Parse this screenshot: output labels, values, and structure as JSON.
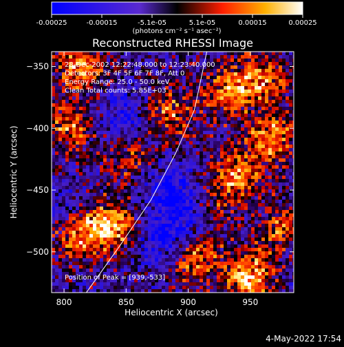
{
  "chart_data": {
    "type": "heatmap",
    "title": "Reconstructed RHESSI Image",
    "xlabel": "Heliocentric X (arcsec)",
    "ylabel": "Heliocentric Y (arcsec)",
    "xlim": [
      790,
      985
    ],
    "ylim": [
      -533,
      -338
    ],
    "xticks": [
      800,
      850,
      900,
      950
    ],
    "yticks": [
      -350,
      -400,
      -450,
      -500
    ],
    "colorbar": {
      "range": [
        -0.00025,
        0.00025
      ],
      "ticks": [
        "-0.00025",
        "-0.00015",
        "-5.1e-05",
        "5.1e-05",
        "0.00015",
        "0.00025"
      ],
      "unit_label": "(photons cm⁻² s⁻¹ asec⁻²)"
    },
    "annotations": [
      "28-Dec-2002 12:22:48.000 to 12:23:40.000",
      "Detectors: 3F 4F 5F 6F 7F 8F, Att 0",
      "Energy Range: 25.0 - 50.0 keV",
      "Clean     Total counts: 5.85E+03"
    ],
    "peak_label": "Position of Peak = [939,-533]",
    "limb_points": [
      [
        818,
        -533
      ],
      [
        845,
        -495
      ],
      [
        870,
        -458
      ],
      [
        890,
        -420
      ],
      [
        905,
        -385
      ],
      [
        915,
        -338
      ]
    ],
    "hotspots": [
      {
        "x": 812,
        "y": -350,
        "value": 0.00022
      },
      {
        "x": 805,
        "y": -398,
        "value": 0.00018
      },
      {
        "x": 838,
        "y": -478,
        "value": 0.00025
      },
      {
        "x": 812,
        "y": -487,
        "value": 0.0002
      },
      {
        "x": 852,
        "y": -425,
        "value": 0.00012
      },
      {
        "x": 885,
        "y": -388,
        "value": 0.00017
      },
      {
        "x": 930,
        "y": -372,
        "value": 0.00018
      },
      {
        "x": 958,
        "y": -360,
        "value": 0.00021
      },
      {
        "x": 968,
        "y": -408,
        "value": 0.00022
      },
      {
        "x": 940,
        "y": -438,
        "value": 0.00019
      },
      {
        "x": 905,
        "y": -505,
        "value": 0.00021
      },
      {
        "x": 948,
        "y": -520,
        "value": 0.00025
      },
      {
        "x": 975,
        "y": -480,
        "value": 0.00016
      },
      {
        "x": 920,
        "y": -462,
        "value": 0.0001
      }
    ],
    "coolspots": [
      {
        "x": 885,
        "y": -450,
        "value": -0.00015
      },
      {
        "x": 900,
        "y": -470,
        "value": -0.00012
      },
      {
        "x": 880,
        "y": -490,
        "value": -0.00016
      },
      {
        "x": 848,
        "y": -390,
        "value": -0.00012
      },
      {
        "x": 800,
        "y": -465,
        "value": -8e-05
      }
    ]
  },
  "footer": {
    "date": "4-May-2022 17:54"
  }
}
